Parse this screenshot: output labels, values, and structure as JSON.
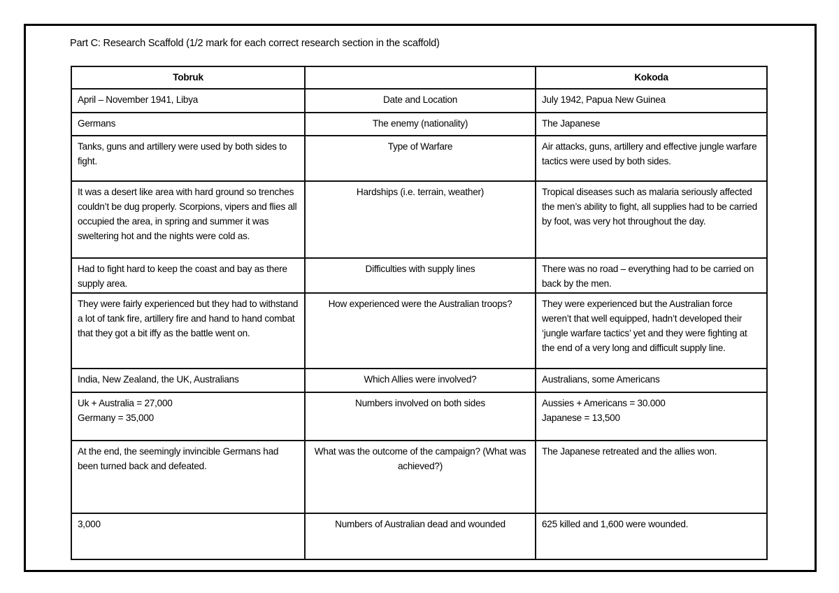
{
  "title": "Part C: Research Scaffold (1/2 mark for each correct research section in the scaffold)",
  "header": {
    "left": "Tobruk",
    "middle": "",
    "right": "Kokoda"
  },
  "rows": [
    {
      "tobruk": "April – November 1941, Libya",
      "topic": "Date and Location",
      "kokoda": "July 1942, Papua New Guinea"
    },
    {
      "tobruk": "Germans",
      "topic": "The enemy (nationality)",
      "kokoda": "The Japanese"
    },
    {
      "tobruk": "Tanks, guns and artillery were used by both sides to fight.",
      "topic": "Type of Warfare",
      "kokoda": "Air attacks, guns, artillery and effective jungle warfare tactics were used by both sides."
    },
    {
      "tobruk": "It was a desert like area with hard ground so trenches couldn’t be dug properly. Scorpions, vipers and flies all occupied the area, in spring and summer it was sweltering hot and the nights were cold as.",
      "topic": "Hardships (i.e. terrain, weather)",
      "kokoda": "Tropical diseases such as malaria seriously affected the men’s ability to fight, all supplies had to be carried by foot, was very hot throughout the day."
    },
    {
      "tobruk": "Had to fight hard to keep the coast and bay as there supply area.",
      "topic": "Difficulties with supply lines",
      "kokoda": "There was no road – everything had to be carried on back by the men."
    },
    {
      "tobruk": "They were fairly experienced but they had to withstand a lot of tank fire, artillery fire and hand to hand combat that they got a bit iffy as the battle went on.",
      "topic": "How experienced were the Australian troops?",
      "kokoda": "They were experienced but the Australian force weren’t that well equipped, hadn’t developed their ‘jungle warfare tactics’ yet and they were fighting at the end of a very long and difficult supply line."
    },
    {
      "tobruk": "India, New Zealand, the UK, Australians",
      "topic": "Which Allies were involved?",
      "kokoda": "Australians, some Americans"
    },
    {
      "tobruk": "Uk + Australia = 27,000\nGermany = 35,000",
      "topic": "Numbers involved on both sides",
      "kokoda": "Aussies + Americans = 30.000\nJapanese = 13,500"
    },
    {
      "tobruk": "At the end, the seemingly invincible Germans had been turned back and defeated.",
      "topic": "What was the outcome of the campaign? (What was achieved?)",
      "kokoda": "The Japanese retreated and the allies won."
    },
    {
      "tobruk": "3,000",
      "topic": "Numbers of Australian dead and wounded",
      "kokoda": "625 killed and 1,600 were wounded."
    }
  ]
}
